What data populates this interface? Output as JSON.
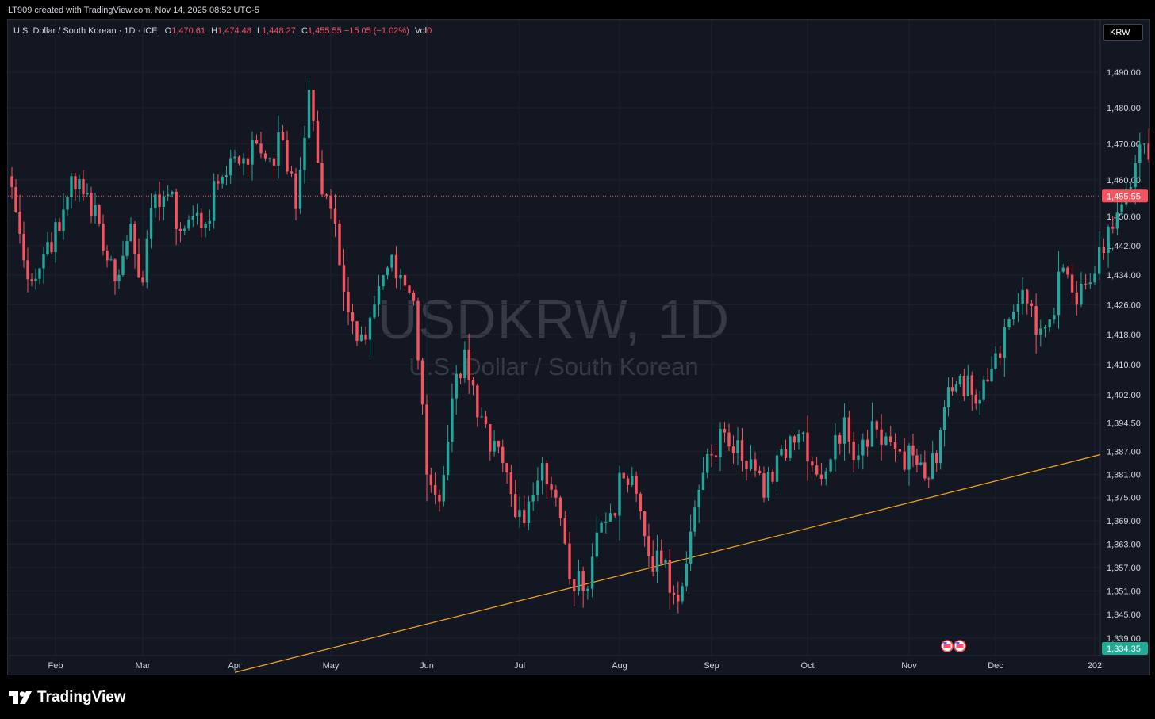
{
  "header": {
    "attribution": "LT909 created with TradingView.com, Nov 14, 2025 08:52 UTC-5"
  },
  "legend": {
    "symbol": "U.S. Dollar / South Korean · 1D · ICE",
    "open_label": "O",
    "open": "1,470.61",
    "high_label": "H",
    "high": "1,474.48",
    "low_label": "L",
    "low": "1,448.27",
    "close_label": "C",
    "close": "1,455.55",
    "change": "−15.05 (−1.02%)",
    "vol_label": "Vol",
    "vol": "0"
  },
  "watermark": {
    "ticker": "USDKRW, 1D",
    "name": "U.S. Dollar / South Korean"
  },
  "currency_button": "KRW",
  "footer": {
    "brand": "TradingView"
  },
  "colors": {
    "background": "#131722",
    "up": "#26a69a",
    "down": "#f7525f",
    "trendline": "#f5a623",
    "grid": "#1e222d",
    "axis_text": "#d1d4dc"
  },
  "icons": [
    "us-flag-event-icon",
    "us-flag-event-icon",
    "tradingview-logo-icon"
  ],
  "chart_data": {
    "type": "candlestick",
    "timeframe": "1D",
    "x_tick_labels": [
      "Feb",
      "Mar",
      "Apr",
      "May",
      "Jun",
      "Jul",
      "Aug",
      "Sep",
      "Oct",
      "Nov",
      "Dec",
      "202"
    ],
    "y_tick_labels": [
      "1,490.00",
      "1,480.00",
      "1,470.00",
      "1,460.00",
      "1,450.00",
      "1,442.00",
      "1,434.00",
      "1,426.00",
      "1,418.00",
      "1,410.00",
      "1,402.00",
      "1,394.50",
      "1,387.00",
      "1,381.00",
      "1,375.00",
      "1,369.00",
      "1,363.00",
      "1,357.00",
      "1,351.00",
      "1,345.00",
      "1,339.00"
    ],
    "y_scale": "log",
    "ylim": [
      1334.35,
      1496.0
    ],
    "last_price": 1455.55,
    "last_price_label": "1,455.55",
    "bottom_price_label": "1,334.35",
    "trendline": {
      "from": [
        "Apr",
        1334.35
      ],
      "to": [
        "202",
        1386.2
      ]
    },
    "first_tick_label": "Feb",
    "trading_days_before_first_tick": 11,
    "trading_days_per_month": 22,
    "anchors": [
      1458,
      1438,
      1433,
      1443,
      1446,
      1461,
      1456,
      1453,
      1438,
      1434,
      1448,
      1432,
      1456,
      1456,
      1446,
      1450,
      1448,
      1459,
      1466,
      1466,
      1470,
      1466,
      1471,
      1452,
      1485,
      1456,
      1448,
      1424,
      1418,
      1426,
      1436,
      1434,
      1427,
      1381,
      1374,
      1401,
      1414,
      1396,
      1387,
      1384,
      1370,
      1374,
      1384,
      1375,
      1354,
      1351,
      1366,
      1371,
      1380,
      1376,
      1360,
      1358,
      1350,
      1358,
      1377,
      1386,
      1392,
      1390,
      1385,
      1375,
      1386,
      1391,
      1392,
      1381,
      1385,
      1396,
      1386,
      1395,
      1391,
      1387,
      1386,
      1380,
      1384,
      1404,
      1407,
      1402,
      1406,
      1413,
      1422,
      1430,
      1418,
      1422,
      1436,
      1426,
      1432,
      1440,
      1451,
      1458,
      1470,
      1455.55
    ]
  }
}
